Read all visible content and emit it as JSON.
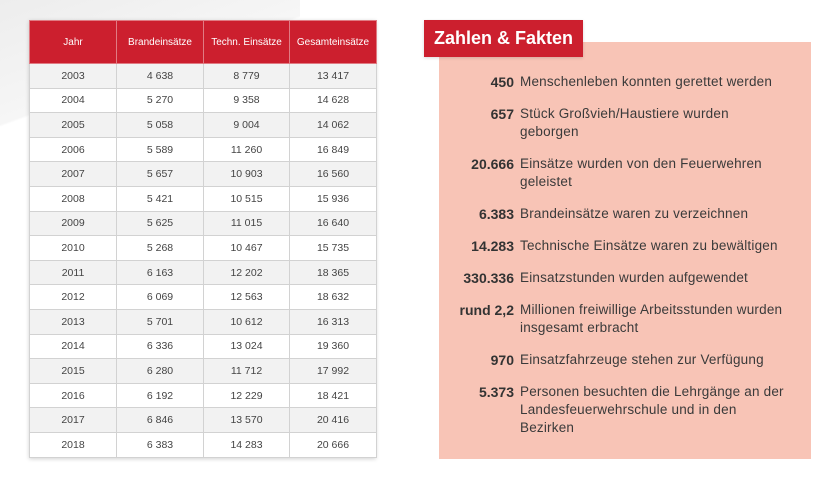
{
  "table": {
    "headers": [
      "Jahr",
      "Brandeinsätze",
      "Techn. Einsätze",
      "Gesamteinsätze"
    ],
    "rows": [
      [
        "2003",
        "4 638",
        "8 779",
        "13 417"
      ],
      [
        "2004",
        "5 270",
        "9 358",
        "14 628"
      ],
      [
        "2005",
        "5 058",
        "9 004",
        "14 062"
      ],
      [
        "2006",
        "5 589",
        "11 260",
        "16 849"
      ],
      [
        "2007",
        "5 657",
        "10 903",
        "16 560"
      ],
      [
        "2008",
        "5 421",
        "10 515",
        "15 936"
      ],
      [
        "2009",
        "5 625",
        "11 015",
        "16 640"
      ],
      [
        "2010",
        "5 268",
        "10 467",
        "15 735"
      ],
      [
        "2011",
        "6 163",
        "12 202",
        "18 365"
      ],
      [
        "2012",
        "6 069",
        "12 563",
        "18 632"
      ],
      [
        "2013",
        "5 701",
        "10 612",
        "16 313"
      ],
      [
        "2014",
        "6 336",
        "13 024",
        "19 360"
      ],
      [
        "2015",
        "6 280",
        "11 712",
        "17 992"
      ],
      [
        "2016",
        "6 192",
        "12 229",
        "18 421"
      ],
      [
        "2017",
        "6 846",
        "13 570",
        "20 416"
      ],
      [
        "2018",
        "6 383",
        "14 283",
        "20 666"
      ]
    ]
  },
  "facts": {
    "title": "Zahlen & Fakten",
    "items": [
      {
        "number": "450",
        "text": "Menschenleben konnten gerettet werden"
      },
      {
        "number": "657",
        "text": "Stück Großvieh/Haustiere wurden geborgen"
      },
      {
        "number": "20.666",
        "text": "Einsätze wurden von den Feuerwehren geleistet"
      },
      {
        "number": "6.383",
        "text": "Brandeinsätze waren zu verzeichnen"
      },
      {
        "number": "14.283",
        "text": "Technische Einsätze waren zu bewältigen"
      },
      {
        "number": "330.336",
        "text": "Einsatzstunden wurden aufgewendet"
      },
      {
        "number": "rund 2,2",
        "text": "Millionen freiwillige Arbeitsstunden wurden insgesamt erbracht"
      },
      {
        "number": "970",
        "text": "Einsatzfahrzeuge stehen zur Verfügung"
      },
      {
        "number": "5.373",
        "text": "Personen besuchten die Lehrgänge an der Landesfeuerwehrschule und in den Bezirken"
      }
    ]
  },
  "colors": {
    "accent": "#cc1f2e",
    "facts_background": "#f8c4b6"
  }
}
